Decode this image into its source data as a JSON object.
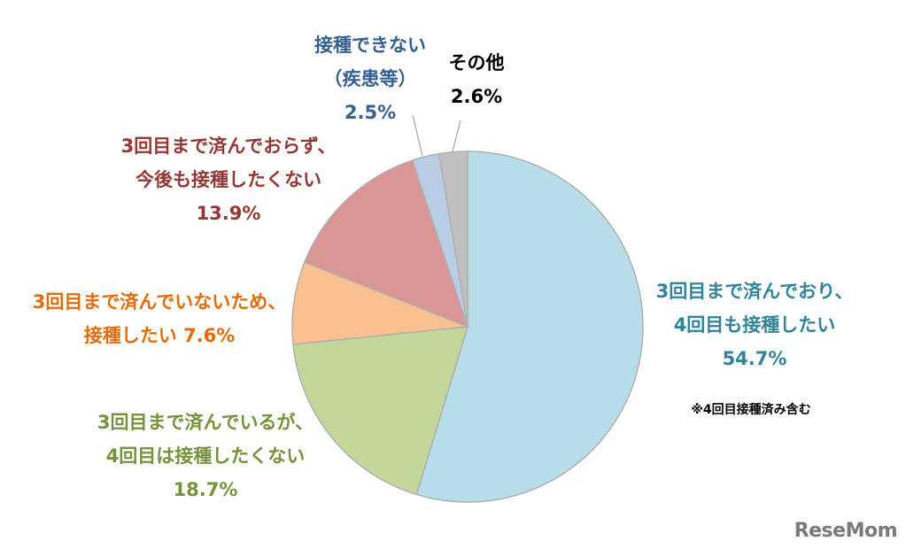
{
  "chart_data": {
    "type": "pie",
    "slices": [
      {
        "lines": [
          "3回目まで済んでおり、",
          "4回目も接種したい",
          "54.7%"
        ],
        "value": 54.7,
        "color": "#b7dde8",
        "label_color": "#31849b"
      },
      {
        "lines": [
          "3回目まで済んでいるが、",
          "4回目は接種したくない",
          "18.7%"
        ],
        "value": 18.7,
        "color": "#c4d79b",
        "label_color": "#76923c"
      },
      {
        "lines": [
          "3回目まで済んでいないため、",
          "接種したい 7.6%"
        ],
        "value": 7.6,
        "color": "#fac090",
        "label_color": "#e46c0a"
      },
      {
        "lines": [
          "3回目まで済んでおらず、",
          "今後も接種したくない",
          "13.9%"
        ],
        "value": 13.9,
        "color": "#d99694",
        "label_color": "#953735"
      },
      {
        "lines": [
          "接種できない",
          "（疾患等）",
          "2.5%"
        ],
        "value": 2.5,
        "color": "#b9cde5",
        "label_color": "#376092"
      },
      {
        "lines": [
          "その他",
          "2.6%"
        ],
        "value": 2.6,
        "color": "#bfbfbf",
        "label_color": "#000000"
      }
    ],
    "start": "12 o'clock",
    "direction": "clockwise",
    "note": "※4回目接種済み含む"
  },
  "brand": "ReseMom"
}
